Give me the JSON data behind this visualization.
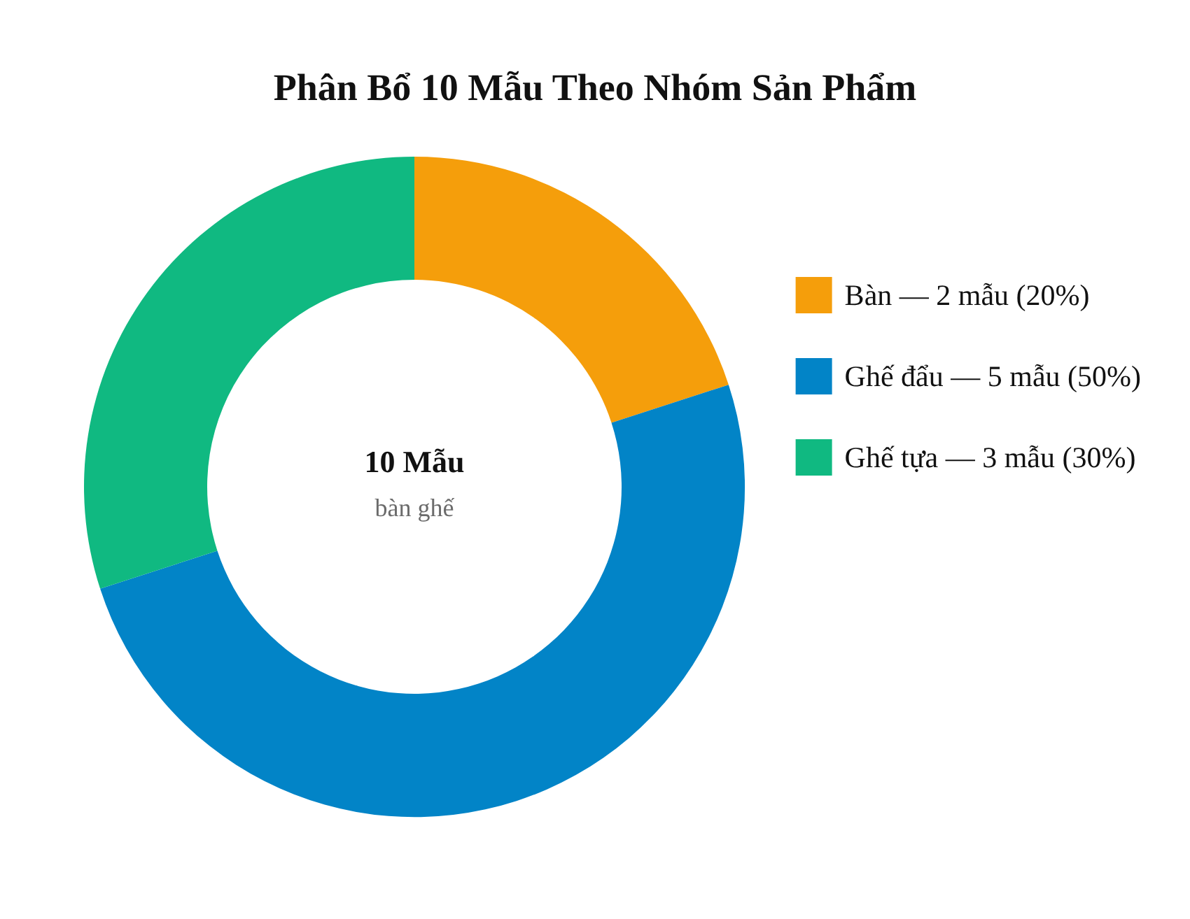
{
  "chart_data": {
    "type": "donut",
    "title": "Phân Bổ 10 Mẫu Theo Nhóm Sản Phẩm",
    "categories": [
      "Bàn — 2 mẫu (20%)",
      "Ghế đẩu — 5 mẫu (50%)",
      "Ghế tựa — 3 mẫu (30%)"
    ],
    "values": [
      2,
      5,
      3
    ],
    "colors": [
      "#f59e0b",
      "#0284c7",
      "#10b981"
    ],
    "annotations": [
      "10 Mẫu",
      "bàn ghế"
    ],
    "legend": "right"
  }
}
